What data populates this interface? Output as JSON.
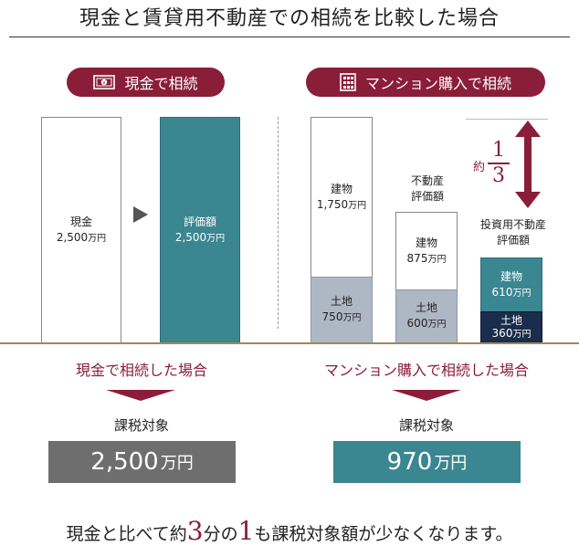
{
  "title": "現金と賃貸用不動産での相続を比較した場合",
  "left": {
    "pill_label": "現金で相続",
    "cash_box": {
      "label": "現金",
      "amount": "2,500",
      "unit": "万円"
    },
    "eval_box": {
      "label": "評価額",
      "amount": "2,500",
      "unit": "万円"
    },
    "case_label": "現金で相続した場合",
    "taxable_label": "課税対象",
    "taxable_amount": "2,500",
    "taxable_unit": "万円"
  },
  "right": {
    "pill_label": "マンション購入で相続",
    "building": {
      "label": "建物",
      "amount": "1,750",
      "unit": "万円"
    },
    "land": {
      "label": "土地",
      "amount": "750",
      "unit": "万円"
    },
    "re_eval_caption": [
      "不動産",
      "評価額"
    ],
    "re_building": {
      "label": "建物",
      "amount": "875",
      "unit": "万円"
    },
    "re_land": {
      "label": "土地",
      "amount": "600",
      "unit": "万円"
    },
    "inv_eval_caption": [
      "投資用不動産",
      "評価額"
    ],
    "inv_building": {
      "label": "建物",
      "amount": "610",
      "unit": "万円"
    },
    "inv_land": {
      "label": "土地",
      "amount": "360",
      "unit": "万円"
    },
    "ratio": {
      "prefix": "約",
      "numerator": "1",
      "denominator": "3"
    },
    "case_label": "マンション購入で相続した場合",
    "taxable_label": "課税対象",
    "taxable_amount": "970",
    "taxable_unit": "万円"
  },
  "conclusion": {
    "pre": "現金と比べて約",
    "num1": "3",
    "mid": "分の",
    "num2": "1",
    "post": "も課税対象額が少なくなります。"
  },
  "colors": {
    "accent": "#8a1e39",
    "teal": "#3a8691",
    "navy": "#1b2d4c",
    "gray_box": "#aeb7c4",
    "result_gray": "#6e6e6e"
  },
  "icons": {
    "left_pill": "banknote-icon",
    "right_pill": "building-icon"
  }
}
